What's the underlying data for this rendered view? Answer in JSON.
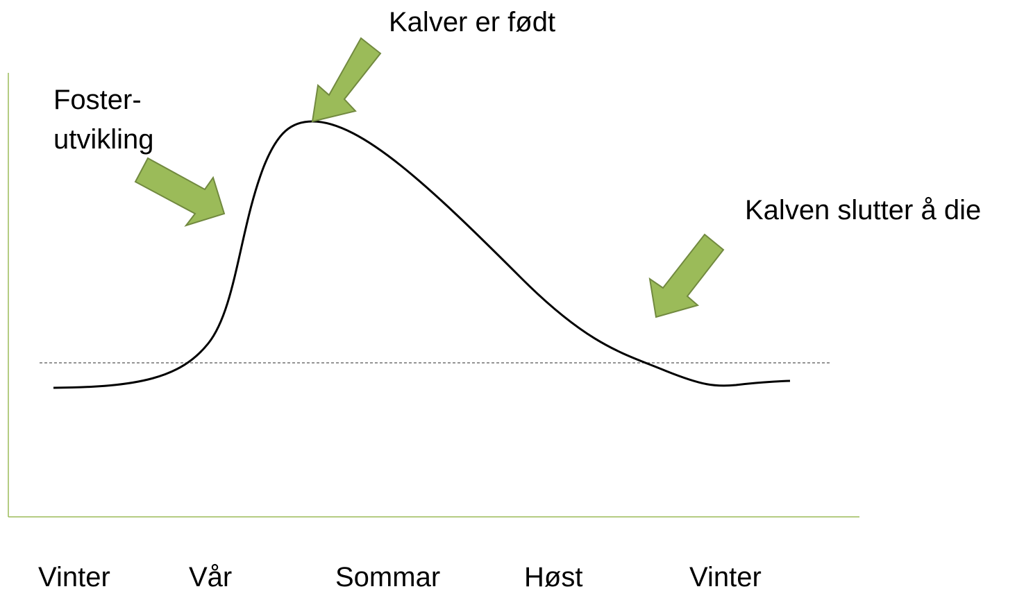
{
  "annotations": {
    "calving": "Kalver er født",
    "fetal": [
      "Foster-",
      "utvikling"
    ],
    "weaning": "Kalven slutter å die"
  },
  "seasons": [
    "Vinter",
    "Vår",
    "Sommar",
    "Høst",
    "Vinter"
  ]
}
